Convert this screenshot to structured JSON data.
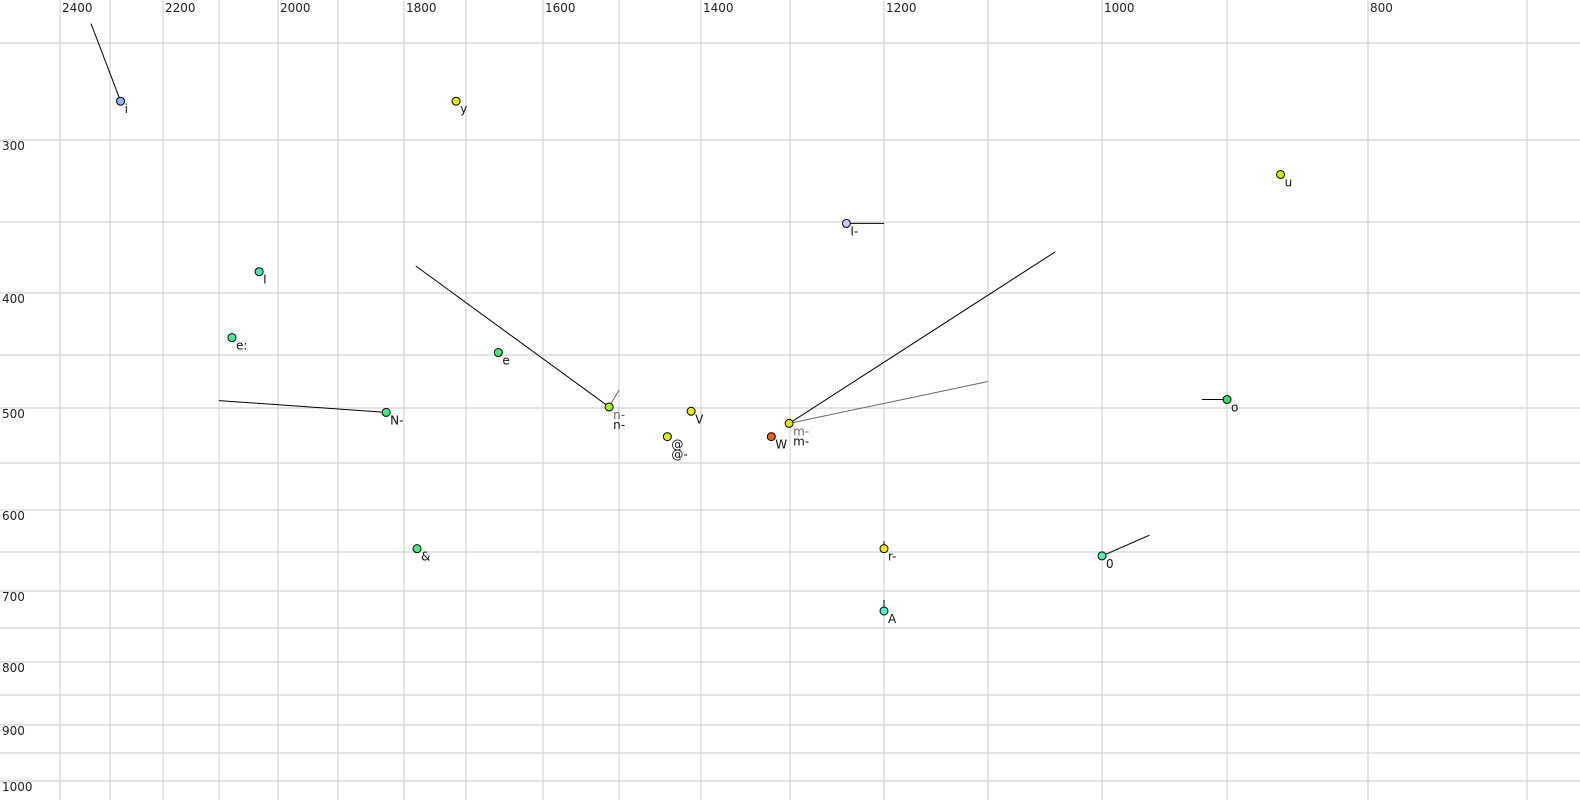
{
  "chart_data": {
    "type": "scatter",
    "title": "",
    "xlabel": "",
    "ylabel": "",
    "x_axis": {
      "reversed": true,
      "scale": "auditory (non-linear)",
      "position": "top",
      "tick_labels": [
        "2400",
        "2200",
        "2000",
        "1800",
        "1600",
        "1400",
        "1200",
        "1000",
        "800"
      ],
      "gridlines": [
        2400,
        2300,
        2200,
        2100,
        2000,
        1900,
        1800,
        1700,
        1600,
        1500,
        1400,
        1300,
        1200,
        1100,
        1000,
        900,
        800,
        700
      ]
    },
    "y_axis": {
      "reversed": true,
      "scale": "auditory (non-linear)",
      "position": "left",
      "tick_labels": [
        "300",
        "400",
        "500",
        "600",
        "700",
        "800",
        "900",
        "1000"
      ],
      "gridlines": [
        250,
        300,
        350,
        400,
        450,
        500,
        550,
        600,
        650,
        700,
        750,
        800,
        850,
        900,
        950,
        1000
      ]
    },
    "grid": true,
    "legend": "none",
    "points": [
      {
        "label": "i",
        "x": 2280,
        "y": 280,
        "color": "#8fb8f0",
        "trail": [
          [
            2338,
            240
          ]
        ]
      },
      {
        "label": "y",
        "x": 1716,
        "y": 280,
        "color": "#e6f000",
        "trail": []
      },
      {
        "label": "u",
        "x": 862,
        "y": 321,
        "color": "#c8f000",
        "trail": []
      },
      {
        "label": "I-",
        "x": 1240,
        "y": 351,
        "color": "#cfc8f0",
        "trail": [
          [
            1200,
            351
          ]
        ]
      },
      {
        "label": "I",
        "x": 2032,
        "y": 385,
        "color": "#40f0b0",
        "trail": []
      },
      {
        "label": "e:",
        "x": 2078,
        "y": 436,
        "color": "#40f0a0",
        "trail": []
      },
      {
        "label": "e",
        "x": 1658,
        "y": 448,
        "color": "#40f080",
        "trail": []
      },
      {
        "label": "o",
        "x": 900,
        "y": 492,
        "color": "#40e060",
        "trail": [
          [
            920,
            492
          ]
        ]
      },
      {
        "label": "N-",
        "x": 1827,
        "y": 504,
        "color": "#40f080",
        "trail": [
          [
            2100,
            493
          ]
        ]
      },
      {
        "label": "n-",
        "label2": "n-",
        "x": 1513,
        "y": 499,
        "color": "#a8f020",
        "trail": [
          [
            1781,
            381
          ]
        ],
        "trail2": [
          [
            1500,
            483
          ]
        ]
      },
      {
        "label": "V",
        "x": 1412,
        "y": 503,
        "color": "#f0f000",
        "trail": []
      },
      {
        "label": "@",
        "label2": "@-",
        "x": 1441,
        "y": 526,
        "color": "#d8f000",
        "trail": []
      },
      {
        "label": "W",
        "x": 1321,
        "y": 526,
        "color": "#f06010",
        "trail": []
      },
      {
        "label": "m-",
        "label2": "m-",
        "x": 1301,
        "y": 514,
        "color": "#d4f000",
        "trail": [
          [
            1041,
            371
          ]
        ],
        "trail2": [
          [
            1100,
            475
          ]
        ]
      },
      {
        "label": "&",
        "x": 1779,
        "y": 646,
        "color": "#40f080",
        "trail": []
      },
      {
        "label": "r-",
        "x": 1200,
        "y": 646,
        "color": "#f0f000",
        "trail": [
          [
            1200,
            637
          ]
        ]
      },
      {
        "label": "0",
        "x": 1000,
        "y": 655,
        "color": "#50f0b0",
        "trail": [
          [
            962,
            630
          ]
        ]
      },
      {
        "label": "A",
        "x": 1200,
        "y": 727,
        "color": "#50f0c8",
        "trail": [
          [
            1200,
            712
          ]
        ]
      }
    ]
  }
}
